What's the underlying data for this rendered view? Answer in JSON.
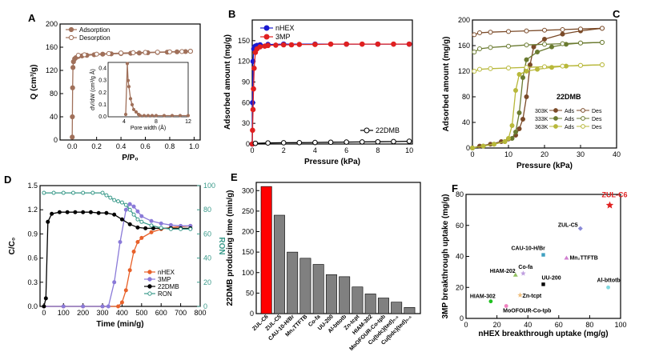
{
  "chart_data": [
    {
      "panel": "A",
      "type": "line",
      "xlabel": "P/P₀",
      "ylabel": "Q (cm³/g)",
      "xlim": [
        -0.1,
        1.05
      ],
      "ylim": [
        0,
        200
      ],
      "xticks": [
        "0.0",
        "0.2",
        "0.4",
        "0.6",
        "0.8",
        "1.0"
      ],
      "yticks": [
        "0",
        "40",
        "80",
        "120",
        "160",
        "200"
      ],
      "legend": [
        "Adsorption",
        "Desorption"
      ],
      "series": [
        {
          "name": "Adsorption",
          "color": "#a0705a",
          "x": [
            0.0,
            0.001,
            0.003,
            0.006,
            0.01,
            0.02,
            0.03,
            0.05,
            0.08,
            0.12,
            0.18,
            0.25,
            0.32,
            0.4,
            0.48,
            0.55,
            0.62,
            0.7,
            0.78,
            0.86,
            0.93,
            0.97
          ],
          "y": [
            5,
            40,
            90,
            125,
            135,
            140,
            142,
            144,
            145,
            146,
            147,
            148,
            148.5,
            149,
            149.5,
            150,
            150.5,
            151,
            151.5,
            152,
            152.5,
            153
          ]
        },
        {
          "name": "Desorption",
          "color": "#a0705a",
          "x": [
            0.97,
            0.9,
            0.8,
            0.7,
            0.6,
            0.5,
            0.4,
            0.3,
            0.2,
            0.1,
            0.05
          ],
          "y": [
            153,
            152.5,
            152,
            151.5,
            151,
            150.5,
            150,
            149,
            148,
            147,
            146
          ]
        }
      ],
      "inset": {
        "xlabel": "Pore width (Å)",
        "ylabel": "dV/dW (cm³/g Å)",
        "xlim": [
          2,
          12
        ],
        "ylim": [
          0,
          0.45
        ],
        "xticks": [
          "4",
          "8",
          "12"
        ],
        "yticks": [
          "0.0",
          "0.1",
          "0.2",
          "0.3",
          "0.4"
        ],
        "x": [
          4.2,
          4.4,
          4.5,
          4.6,
          4.8,
          5.0,
          5.2,
          5.5,
          5.8,
          6.0,
          6.5,
          7,
          7.5,
          8,
          9,
          10,
          11,
          12
        ],
        "y": [
          0.02,
          0.44,
          0.3,
          0.25,
          0.15,
          0.1,
          0.06,
          0.04,
          0.02,
          0.01,
          0.01,
          0.01,
          0.01,
          0.01,
          0.01,
          0.01,
          0.01,
          0.01
        ]
      }
    },
    {
      "panel": "B",
      "type": "line",
      "xlabel": "Pressure (kPa)",
      "ylabel": "Adsorbed amount (mg/g)",
      "xlim": [
        0,
        10.2
      ],
      "ylim": [
        0,
        180
      ],
      "xticks": [
        "0",
        "2",
        "4",
        "6",
        "8",
        "10"
      ],
      "yticks": [
        "0",
        "30",
        "60",
        "90",
        "120",
        "150"
      ],
      "legend": [
        "nHEX",
        "3MP",
        "22DMB"
      ],
      "series": [
        {
          "name": "nHEX",
          "color": "#1a1ad0",
          "x": [
            0,
            0.02,
            0.05,
            0.1,
            0.15,
            0.2,
            0.3,
            0.5,
            1,
            2,
            4,
            6,
            8,
            10
          ],
          "y": [
            0,
            60,
            120,
            138,
            141,
            142,
            143,
            144,
            144.5,
            145,
            145,
            145,
            145,
            145
          ]
        },
        {
          "name": "3MP",
          "color": "#e02020",
          "x": [
            0,
            0.02,
            0.05,
            0.08,
            0.12,
            0.2,
            0.3,
            0.5,
            0.8,
            1,
            1.5,
            2,
            2.5,
            3,
            4,
            5,
            6,
            7,
            8,
            9,
            10
          ],
          "y": [
            0,
            20,
            50,
            80,
            110,
            133,
            138,
            141,
            142,
            143,
            143.5,
            144,
            144,
            144.5,
            144.5,
            145,
            145,
            145,
            145,
            145,
            145
          ]
        },
        {
          "name": "22DMB",
          "color": "#000000",
          "x": [
            0.2,
            1,
            2,
            3,
            4,
            5,
            6,
            7,
            8,
            9,
            10
          ],
          "y": [
            1,
            1.5,
            1.8,
            2,
            2.2,
            2.5,
            2.8,
            3,
            3.2,
            3.5,
            4
          ]
        }
      ]
    },
    {
      "panel": "C",
      "type": "line",
      "xlabel": "Pressure (kPa)",
      "ylabel": "Adsorbed amount (mg/g)",
      "xlim": [
        0,
        40
      ],
      "ylim": [
        0,
        200
      ],
      "xticks": [
        "0",
        "10",
        "20",
        "30",
        "40"
      ],
      "yticks": [
        "0",
        "40",
        "80",
        "120",
        "160",
        "200"
      ],
      "legend_title": "22DMB",
      "legend": [
        "303K Ads",
        "303K Des",
        "333K Ads",
        "333K Des",
        "363K Ads",
        "363K Des"
      ],
      "series": [
        {
          "name": "303K Ads",
          "color": "#7a4a28",
          "x": [
            0,
            2,
            5,
            8,
            10,
            12,
            13,
            14,
            15,
            16,
            17,
            20,
            25,
            30,
            36
          ],
          "y": [
            0,
            3,
            6,
            10,
            14,
            20,
            30,
            45,
            80,
            130,
            158,
            170,
            178,
            183,
            187
          ]
        },
        {
          "name": "303K Des",
          "color": "#7a4a28",
          "x": [
            36,
            30,
            25,
            20,
            15,
            10,
            5,
            2,
            0.5
          ],
          "y": [
            187,
            186,
            185,
            184,
            183,
            182,
            181,
            180,
            177
          ]
        },
        {
          "name": "333K Ads",
          "color": "#6a7a30",
          "x": [
            0,
            3,
            6,
            9,
            11,
            12,
            13,
            14,
            15,
            18,
            22,
            26,
            30,
            36
          ],
          "y": [
            0,
            3,
            6,
            10,
            15,
            25,
            55,
            110,
            138,
            150,
            158,
            162,
            164,
            165
          ]
        },
        {
          "name": "333K Des",
          "color": "#6a7a30",
          "x": [
            36,
            30,
            25,
            20,
            15,
            10,
            5,
            2,
            0.5
          ],
          "y": [
            165,
            164,
            163,
            162,
            161,
            159,
            157,
            155,
            150
          ]
        },
        {
          "name": "363K Ads",
          "color": "#b8b83a",
          "x": [
            0,
            3,
            6,
            9,
            10,
            11,
            12,
            13,
            15,
            18,
            22,
            26,
            30,
            36
          ],
          "y": [
            0,
            3,
            6,
            10,
            15,
            35,
            90,
            115,
            120,
            123,
            126,
            128,
            129,
            130
          ]
        },
        {
          "name": "363K Des",
          "color": "#b8b83a",
          "x": [
            36,
            30,
            25,
            20,
            15,
            10,
            5,
            2,
            0.5
          ],
          "y": [
            130,
            129,
            128,
            127,
            126,
            125,
            124,
            123,
            120
          ]
        }
      ]
    },
    {
      "panel": "D",
      "type": "line",
      "xlabel": "Time (min/g)",
      "ylabel": "C/C₀",
      "ylabel_right": "RON",
      "xlim": [
        -20,
        800
      ],
      "ylim": [
        0,
        1.5
      ],
      "ylim_right": [
        0,
        100
      ],
      "xticks": [
        "0",
        "100",
        "200",
        "300",
        "400",
        "500",
        "600",
        "700",
        "800"
      ],
      "yticks": [
        "0.0",
        "0.3",
        "0.6",
        "0.9",
        "1.2",
        "1.5"
      ],
      "yticks_right": [
        "0",
        "20",
        "40",
        "60",
        "80",
        "100"
      ],
      "legend": [
        "nHEX",
        "3MP",
        "22DMB",
        "RON"
      ],
      "series": [
        {
          "name": "nHEX",
          "color": "#e8612a",
          "x": [
            0,
            100,
            200,
            300,
            380,
            400,
            420,
            440,
            460,
            480,
            500,
            550,
            600,
            650,
            700,
            750
          ],
          "y": [
            0,
            0,
            0,
            0,
            0,
            0.05,
            0.2,
            0.45,
            0.68,
            0.8,
            0.85,
            0.92,
            0.96,
            0.98,
            0.99,
            1.0
          ]
        },
        {
          "name": "3MP",
          "color": "#8a7ad8",
          "x": [
            0,
            100,
            200,
            300,
            330,
            360,
            390,
            420,
            440,
            460,
            480,
            500,
            550,
            600,
            650,
            700,
            750
          ],
          "y": [
            0,
            0,
            0,
            0,
            0,
            0.3,
            0.8,
            1.2,
            1.27,
            1.24,
            1.18,
            1.12,
            1.06,
            1.03,
            1.01,
            1.0,
            1.0
          ]
        },
        {
          "name": "22DMB",
          "color": "#000000",
          "x": [
            0,
            10,
            20,
            40,
            80,
            120,
            160,
            200,
            240,
            280,
            320,
            360,
            400,
            440,
            480,
            520,
            560,
            600,
            650,
            700,
            750
          ],
          "y": [
            0,
            0.1,
            1.05,
            1.15,
            1.17,
            1.17,
            1.17,
            1.17,
            1.17,
            1.16,
            1.16,
            1.14,
            1.08,
            1.02,
            0.98,
            0.97,
            0.97,
            0.97,
            0.97,
            0.97,
            0.97
          ]
        },
        {
          "name": "RON",
          "color": "#3a9a8a",
          "axis": "right",
          "x": [
            0,
            50,
            100,
            150,
            200,
            250,
            300,
            320,
            340,
            360,
            380,
            400,
            420,
            440,
            460,
            480,
            500,
            550,
            600,
            650,
            700,
            750
          ],
          "y": [
            94,
            94,
            94,
            94,
            94,
            94,
            94,
            92,
            90,
            88,
            87,
            86,
            84,
            80,
            76,
            72,
            70,
            67,
            65,
            64,
            64,
            64
          ]
        }
      ]
    },
    {
      "panel": "E",
      "type": "bar",
      "ylabel": "22DMB producing time (min/g)",
      "ylim": [
        0,
        320
      ],
      "yticks": [
        "0",
        "50",
        "100",
        "150",
        "200",
        "250",
        "300"
      ],
      "categories": [
        "ZUL-C6",
        "ZUL-C5",
        "CAU-10-H/Br",
        "Mn₂TTFTB",
        "Co-fa",
        "UU-200",
        "Al-bttotb",
        "Zn-tcpt",
        "HIAM-302",
        "MoOFOUR-Co-tpb",
        "Cu(bdc)(ted)₀.₅",
        "Cu(bdc)(ted)₀.₅"
      ],
      "values": [
        310,
        240,
        150,
        135,
        120,
        95,
        90,
        65,
        48,
        38,
        28,
        15
      ],
      "colors": [
        "#ff0000",
        "#808080",
        "#808080",
        "#808080",
        "#808080",
        "#808080",
        "#808080",
        "#808080",
        "#808080",
        "#808080",
        "#808080",
        "#808080"
      ]
    },
    {
      "panel": "F",
      "type": "scatter",
      "xlabel": "nHEX breakthrough uptake (mg/g)",
      "ylabel": "3MP breakthrough uptake (mg/g)",
      "xlim": [
        0,
        100
      ],
      "ylim": [
        0,
        80
      ],
      "xticks": [
        "0",
        "20",
        "40",
        "60",
        "80",
        "100"
      ],
      "yticks": [
        "0",
        "20",
        "40",
        "60",
        "80"
      ],
      "points": [
        {
          "label": "ZUL-C6",
          "x": 93,
          "y": 73,
          "color": "#e02020",
          "marker": "star"
        },
        {
          "label": "ZUL-C5",
          "x": 74,
          "y": 58,
          "color": "#8a8ad8",
          "marker": "diamond"
        },
        {
          "label": "CAU-10-H/Br",
          "x": 50,
          "y": 41,
          "color": "#40a0c0",
          "marker": "square"
        },
        {
          "label": "Mn₂TTFTB",
          "x": 65,
          "y": 39,
          "color": "#d080d0",
          "marker": "triangle"
        },
        {
          "label": "HIAM-202",
          "x": 32,
          "y": 28,
          "color": "#90c060",
          "marker": "triangle"
        },
        {
          "label": "Co-fa",
          "x": 37,
          "y": 29,
          "color": "#c0a0e0",
          "marker": "star"
        },
        {
          "label": "UU-200",
          "x": 50,
          "y": 22,
          "color": "#000000",
          "marker": "square"
        },
        {
          "label": "Al-bttotb",
          "x": 92,
          "y": 20,
          "color": "#80d8e0",
          "marker": "circle"
        },
        {
          "label": "HIAM-302",
          "x": 16,
          "y": 11,
          "color": "#20c020",
          "marker": "circle"
        },
        {
          "label": "Zn-tcpt",
          "x": 35,
          "y": 15,
          "color": "#f0c080",
          "marker": "star"
        },
        {
          "label": "MoOFOUR-Co-tpb",
          "x": 26,
          "y": 8,
          "color": "#f080c0",
          "marker": "circle"
        }
      ]
    }
  ]
}
